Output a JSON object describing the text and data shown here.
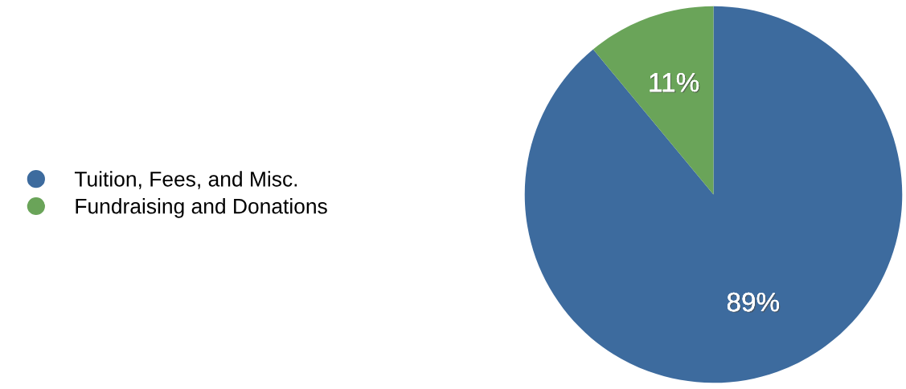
{
  "chart_data": {
    "type": "pie",
    "categories": [
      "Tuition, Fees, and Misc.",
      "Fundraising and Donations"
    ],
    "values": [
      89,
      11
    ],
    "colors": [
      "#3d6b9e",
      "#6aa459"
    ],
    "value_labels": [
      "89%",
      "11%"
    ],
    "legend": "left"
  }
}
